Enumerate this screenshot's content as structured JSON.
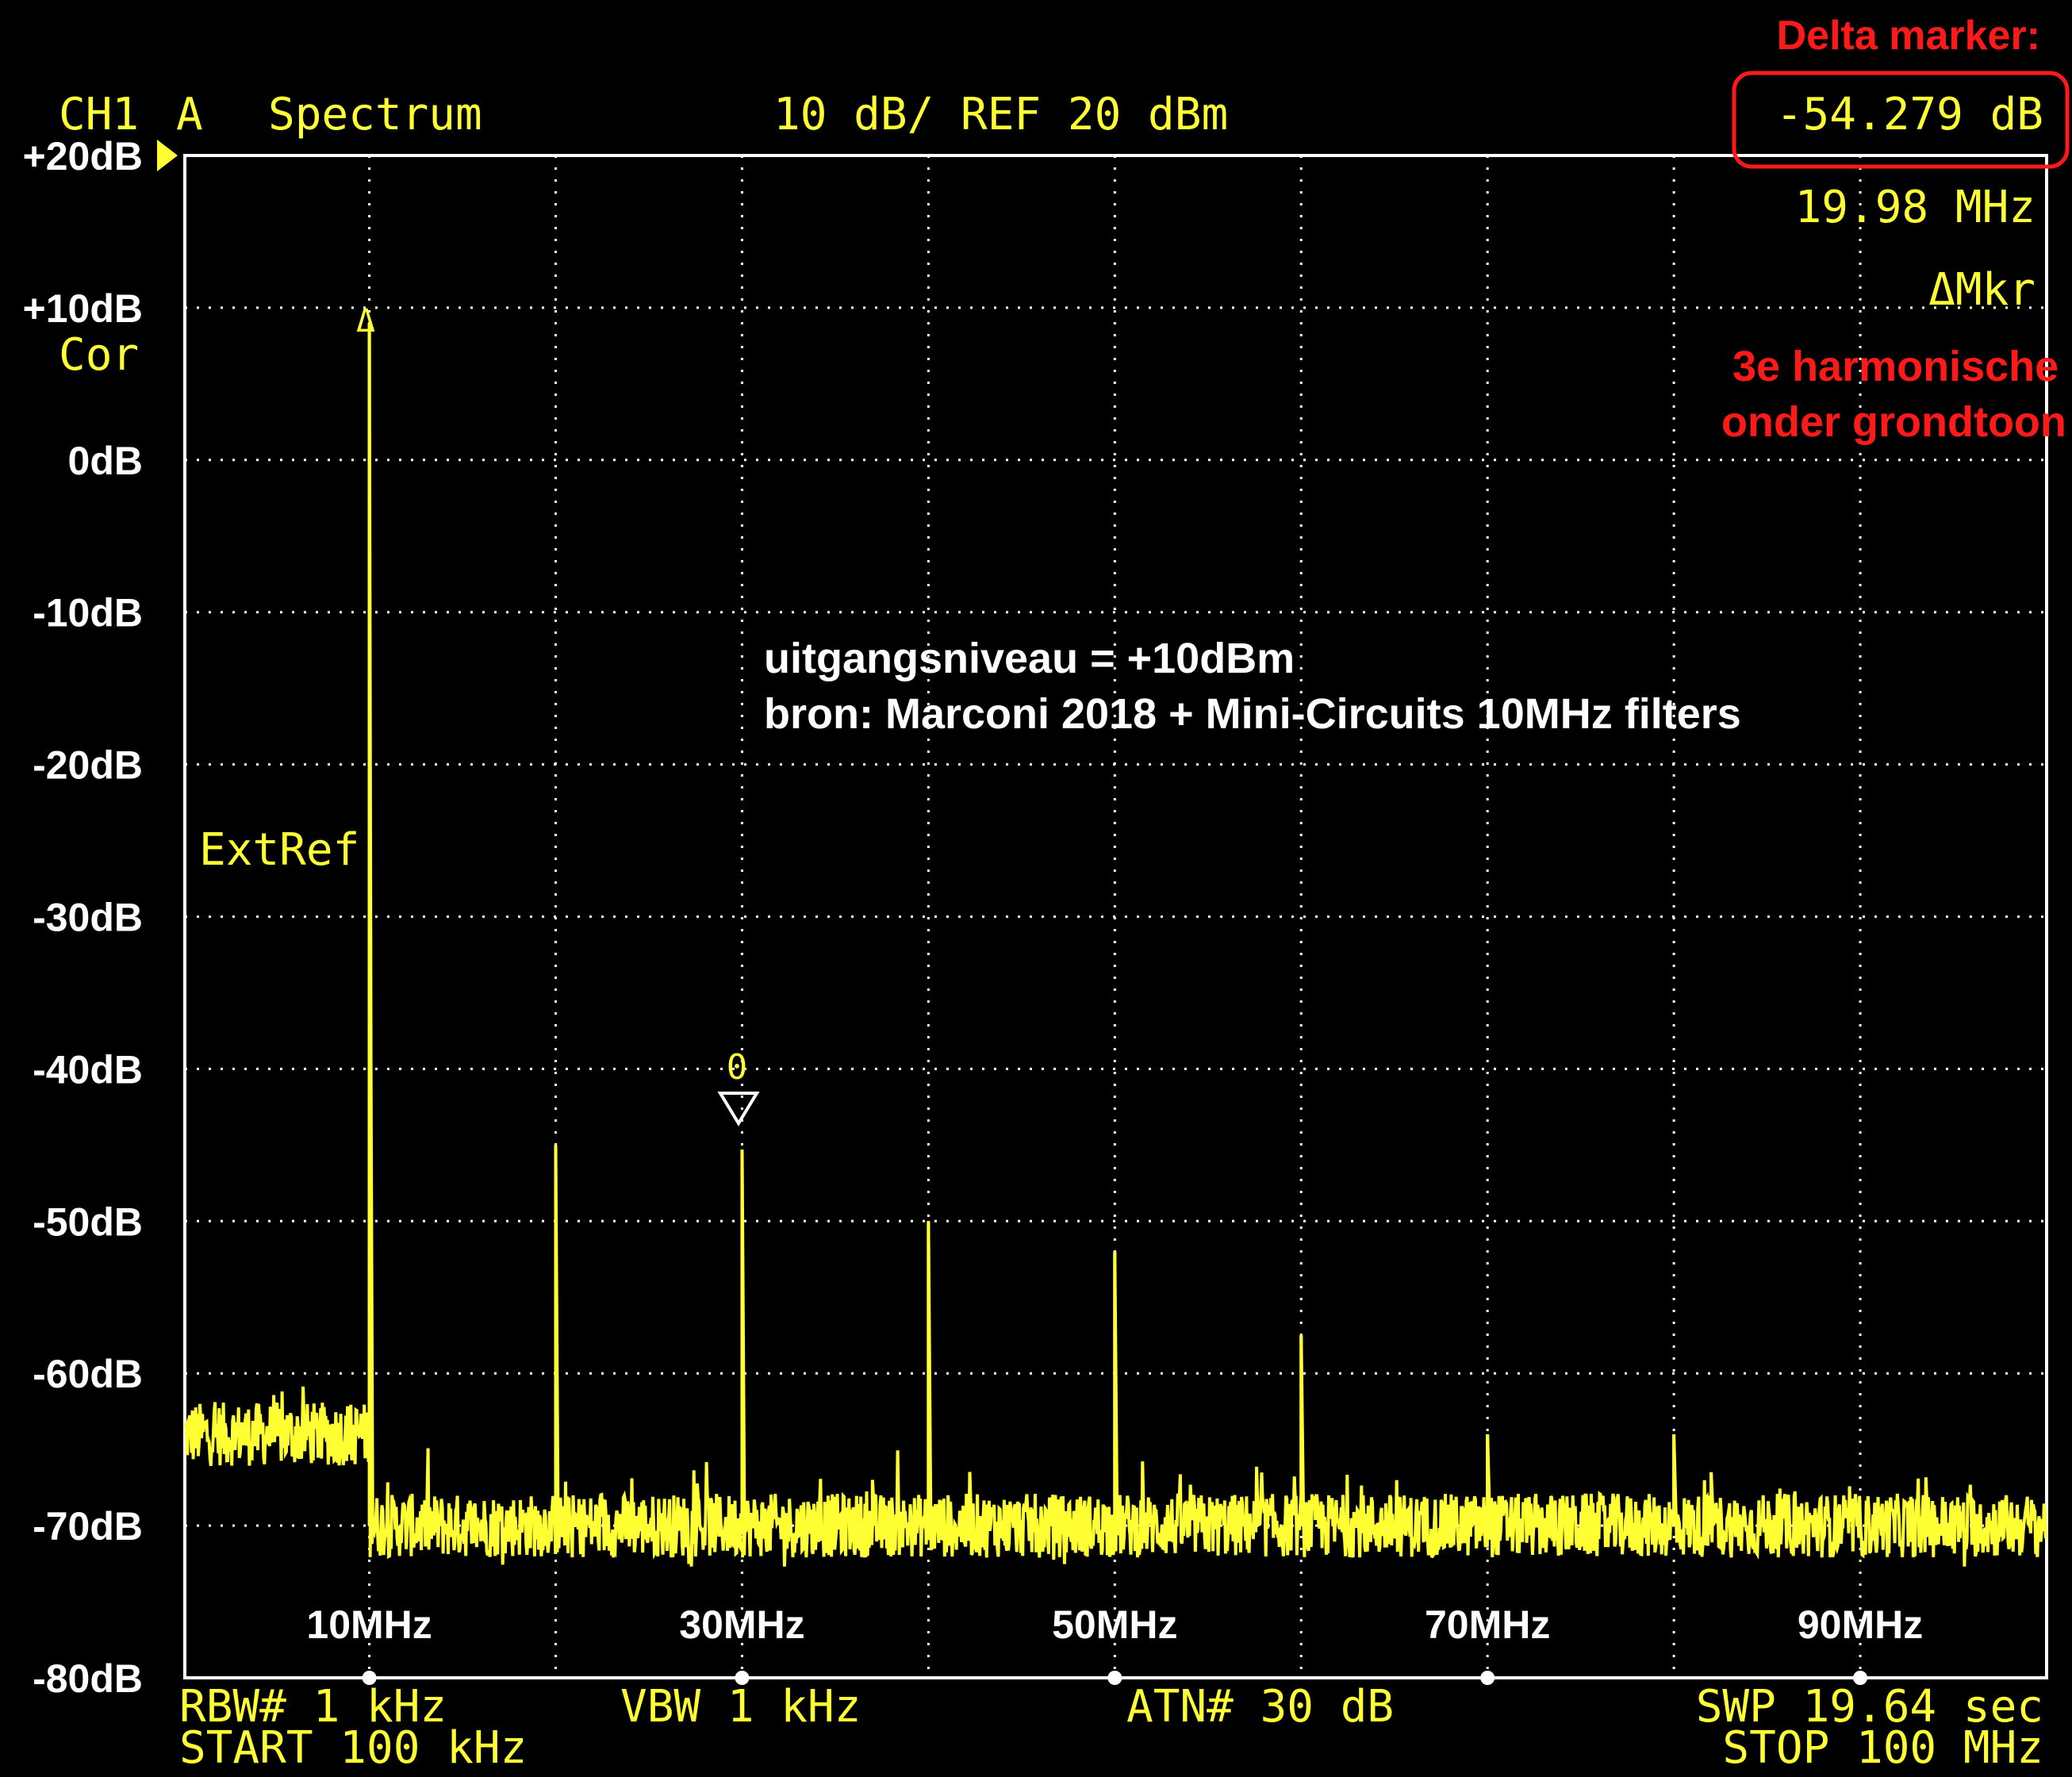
{
  "colors": {
    "background": "#000000",
    "trace": "#ffff33",
    "grid": "#ffffff",
    "annotation_red": "#ff1a1a",
    "label_white": "#ffffff"
  },
  "header": {
    "channel": "CH1",
    "trace_id": "A",
    "mode": "Spectrum",
    "scale": "10 dB/ REF 20 dBm"
  },
  "side_labels": {
    "cor": "Cor",
    "ext_ref": "ExtRef"
  },
  "marker": {
    "delta_value": "-54.279 dB",
    "frequency": "19.98 MHz",
    "type": "ΔMkr",
    "ref_symbol": "Δ",
    "delta_symbol": "0"
  },
  "annotations": {
    "delta_title": "Delta marker:",
    "harmonic_line1": "3e harmonische",
    "harmonic_line2": "onder grondtoon",
    "level_line": "uitgangsniveau = +10dBm",
    "source_line": "bron: Marconi 2018 + Mini-Circuits 10MHz filters"
  },
  "footer": {
    "rbw": "RBW# 1 kHz",
    "vbw": "VBW 1 kHz",
    "atn": "ATN# 30 dB",
    "swp": "SWP 19.64 sec",
    "start": "START 100 kHz",
    "stop": "STOP 100 MHz"
  },
  "chart_data": {
    "type": "line",
    "title": "10 dB/ REF 20 dBm",
    "xlabel": "",
    "ylabel": "",
    "xlim": [
      0.1,
      100
    ],
    "ylim": [
      -80,
      20
    ],
    "grid": true,
    "y_ticks": [
      "+20dB",
      "+10dB",
      "0dB",
      "-10dB",
      "-20dB",
      "-30dB",
      "-40dB",
      "-50dB",
      "-60dB",
      "-70dB",
      "-80dB"
    ],
    "y_tick_values": [
      20,
      10,
      0,
      -10,
      -20,
      -30,
      -40,
      -50,
      -60,
      -70,
      -80
    ],
    "x_ticks": [
      "10MHz",
      "30MHz",
      "50MHz",
      "70MHz",
      "90MHz"
    ],
    "x_tick_values": [
      10,
      30,
      50,
      70,
      90
    ],
    "noise_floor_low_dB": -64,
    "noise_floor_high_dB": -70,
    "noise_step_MHz": 10,
    "series": [
      {
        "name": "",
        "peaks": [
          {
            "x": 10,
            "y": 9
          },
          {
            "x": 20,
            "y": -45
          },
          {
            "x": 30,
            "y": -45.3
          },
          {
            "x": 40,
            "y": -50
          },
          {
            "x": 50,
            "y": -52
          },
          {
            "x": 60,
            "y": -57.5
          },
          {
            "x": 70,
            "y": -64
          },
          {
            "x": 80,
            "y": -64
          },
          {
            "x": 82,
            "y": -66.5
          },
          {
            "x": 37,
            "y": -67
          },
          {
            "x": 10.05,
            "y": -29
          }
        ]
      }
    ]
  }
}
